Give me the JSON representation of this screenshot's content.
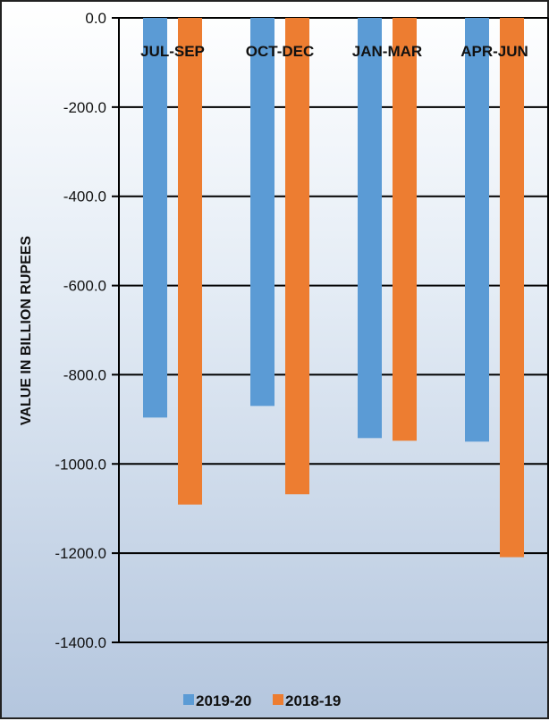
{
  "chart_data": {
    "type": "bar",
    "categories": [
      "JUL-SEP",
      "OCT-DEC",
      "JAN-MAR",
      "APR-JUN"
    ],
    "series": [
      {
        "name": "2019-20",
        "values": [
          -896,
          -870,
          -942,
          -950
        ],
        "color": "#5b9bd5"
      },
      {
        "name": "2018-19",
        "values": [
          -1091,
          -1068,
          -948,
          -1209
        ],
        "color": "#ed7d31"
      }
    ],
    "ylabel": "VALUE IN BILLION RUPEES",
    "ylim": [
      -1400,
      0
    ],
    "yticks": [
      "0.0",
      "-200.0",
      "-400.0",
      "-600.0",
      "-800.0",
      "-1000.0",
      "-1200.0",
      "-1400.0"
    ],
    "ytick_values": [
      0,
      -200,
      -400,
      -600,
      -800,
      -1000,
      -1200,
      -1400
    ],
    "grid": true,
    "legend_position": "bottom"
  }
}
